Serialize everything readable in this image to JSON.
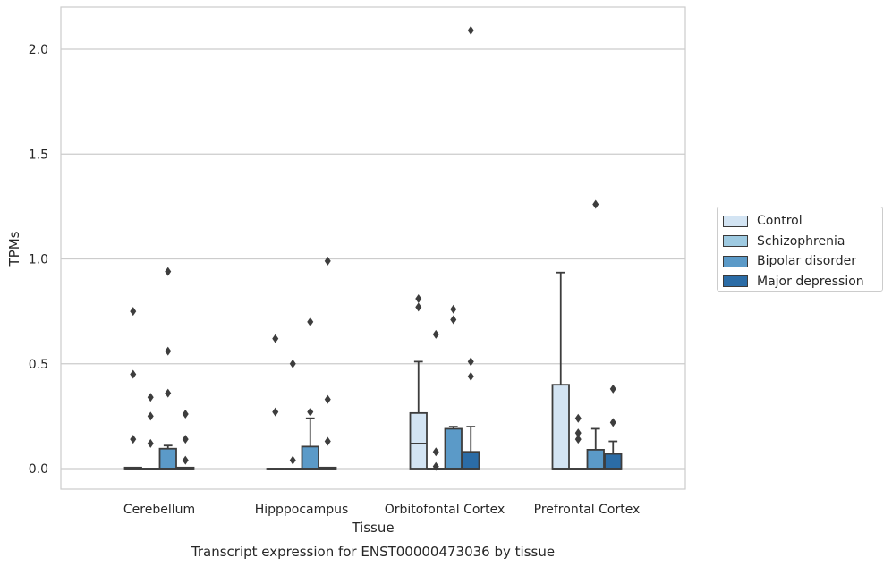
{
  "chart_data": {
    "type": "box",
    "title": "Transcript expression for ENST00000473036 by tissue",
    "xlabel": "Tissue",
    "ylabel": "TPMs",
    "ylim": [
      -0.1,
      2.2
    ],
    "yticks": [
      "0.0",
      "0.5",
      "1.0",
      "1.5",
      "2.0"
    ],
    "categories": [
      "Cerebellum",
      "Hipppocampus",
      "Orbitofontal Cortex",
      "Prefrontal Cortex"
    ],
    "grid": true,
    "legend_position": "right",
    "series": [
      {
        "name": "Control",
        "color": "#d3e4f3",
        "boxes": [
          {
            "q1": 0.0,
            "median": 0.0,
            "q3": 0.005,
            "whisker_low": 0.0,
            "whisker_high": 0.005,
            "outliers": [
              0.14,
              0.45,
              0.75
            ]
          },
          {
            "q1": 0.0,
            "median": 0.0,
            "q3": 0.0,
            "whisker_low": 0.0,
            "whisker_high": 0.0,
            "outliers": [
              0.27,
              0.62
            ]
          },
          {
            "q1": 0.0,
            "median": 0.12,
            "q3": 0.265,
            "whisker_low": 0.0,
            "whisker_high": 0.51,
            "outliers": [
              0.77,
              0.81
            ]
          },
          {
            "q1": 0.0,
            "median": 0.0,
            "q3": 0.4,
            "whisker_low": 0.0,
            "whisker_high": 0.935,
            "outliers": []
          }
        ]
      },
      {
        "name": "Schizophrenia",
        "color": "#9ecae1",
        "boxes": [
          {
            "q1": 0.0,
            "median": 0.0,
            "q3": 0.0,
            "whisker_low": 0.0,
            "whisker_high": 0.0,
            "outliers": [
              0.12,
              0.25,
              0.34
            ]
          },
          {
            "q1": 0.0,
            "median": 0.0,
            "q3": 0.0,
            "whisker_low": 0.0,
            "whisker_high": 0.0,
            "outliers": [
              0.04,
              0.5
            ]
          },
          {
            "q1": 0.0,
            "median": 0.0,
            "q3": 0.0,
            "whisker_low": 0.0,
            "whisker_high": 0.0,
            "outliers": [
              0.01,
              0.08,
              0.64
            ]
          },
          {
            "q1": 0.0,
            "median": 0.0,
            "q3": 0.0,
            "whisker_low": 0.0,
            "whisker_high": 0.0,
            "outliers": [
              0.14,
              0.17,
              0.24
            ]
          }
        ]
      },
      {
        "name": "Bipolar disorder",
        "color": "#5b9ac8",
        "boxes": [
          {
            "q1": 0.0,
            "median": 0.0,
            "q3": 0.095,
            "whisker_low": 0.0,
            "whisker_high": 0.11,
            "outliers": [
              0.36,
              0.56,
              0.94
            ]
          },
          {
            "q1": 0.0,
            "median": 0.0,
            "q3": 0.105,
            "whisker_low": 0.0,
            "whisker_high": 0.24,
            "outliers": [
              0.27,
              0.7
            ]
          },
          {
            "q1": 0.0,
            "median": 0.0,
            "q3": 0.19,
            "whisker_low": 0.0,
            "whisker_high": 0.2,
            "outliers": [
              0.71,
              0.76
            ]
          },
          {
            "q1": 0.0,
            "median": 0.0,
            "q3": 0.09,
            "whisker_low": 0.0,
            "whisker_high": 0.19,
            "outliers": [
              1.26
            ]
          }
        ]
      },
      {
        "name": "Major depression",
        "color": "#2b6ca6",
        "boxes": [
          {
            "q1": 0.0,
            "median": 0.0,
            "q3": 0.005,
            "whisker_low": 0.0,
            "whisker_high": 0.005,
            "outliers": [
              0.04,
              0.14,
              0.26
            ]
          },
          {
            "q1": 0.0,
            "median": 0.0,
            "q3": 0.005,
            "whisker_low": 0.0,
            "whisker_high": 0.005,
            "outliers": [
              0.13,
              0.33,
              0.99
            ]
          },
          {
            "q1": 0.0,
            "median": 0.0,
            "q3": 0.08,
            "whisker_low": 0.0,
            "whisker_high": 0.2,
            "outliers": [
              0.44,
              0.51,
              2.09
            ]
          },
          {
            "q1": 0.0,
            "median": 0.0,
            "q3": 0.07,
            "whisker_low": 0.0,
            "whisker_high": 0.13,
            "outliers": [
              0.22,
              0.38
            ]
          }
        ]
      }
    ]
  }
}
